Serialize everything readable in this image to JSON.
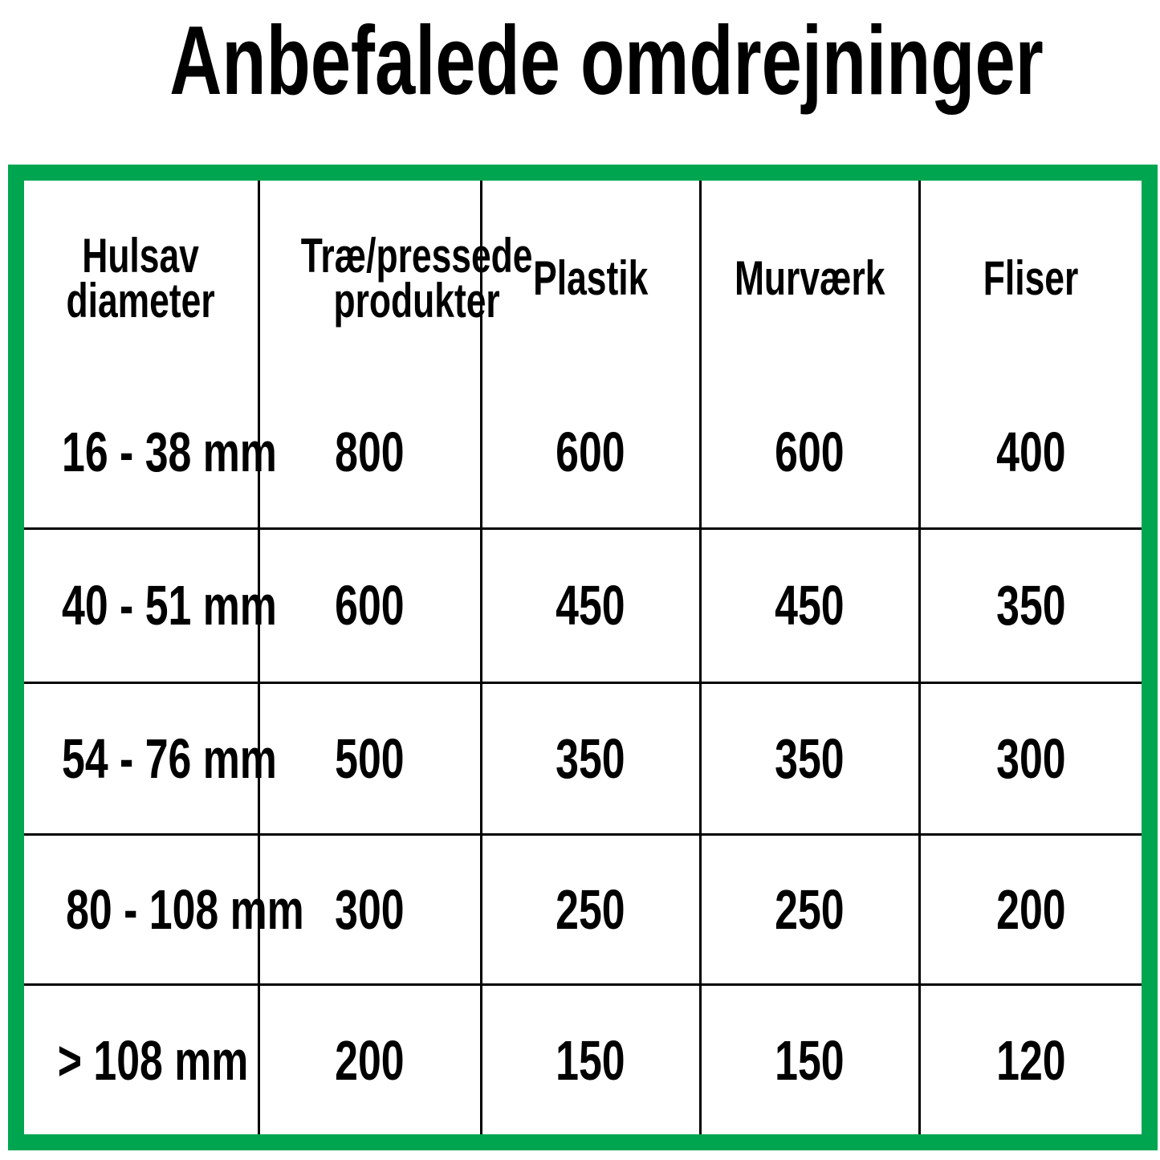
{
  "title": "Anbefalede omdrejninger",
  "accent_color": "#00a550",
  "table": {
    "headers": [
      [
        "Hulsav",
        "diameter"
      ],
      [
        "Træ/pressede",
        "produkter"
      ],
      [
        "Plastik"
      ],
      [
        "Murværk"
      ],
      [
        "Fliser"
      ]
    ],
    "rows": [
      [
        "16 - 38 mm",
        "800",
        "600",
        "600",
        "400"
      ],
      [
        "40 - 51 mm",
        "600",
        "450",
        "450",
        "350"
      ],
      [
        "54 - 76 mm",
        "500",
        "350",
        "350",
        "300"
      ],
      [
        "80 - 108 mm",
        "300",
        "250",
        "250",
        "200"
      ],
      [
        "> 108 mm",
        "200",
        "150",
        "150",
        "120"
      ]
    ]
  }
}
